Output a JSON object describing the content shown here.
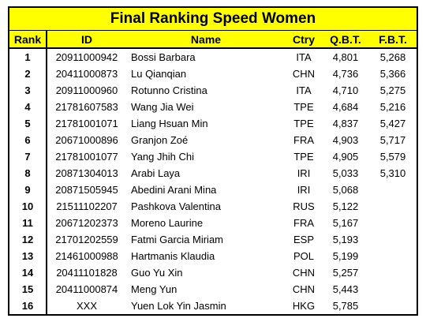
{
  "title": "Final Ranking Speed Women",
  "headers": {
    "rank": "Rank",
    "id": "ID",
    "name": "Name",
    "ctry": "Ctry",
    "qbt": "Q.B.T.",
    "fbt": "F.B.T."
  },
  "rows": [
    {
      "rank": "1",
      "id": "20911000942",
      "name": "Bossi Barbara",
      "ctry": "ITA",
      "qbt": "4,801",
      "fbt": "5,268"
    },
    {
      "rank": "2",
      "id": "20411000873",
      "name": "Lu Qianqian",
      "ctry": "CHN",
      "qbt": "4,736",
      "fbt": "5,366"
    },
    {
      "rank": "3",
      "id": "20911000960",
      "name": "Rotunno Cristina",
      "ctry": "ITA",
      "qbt": "4,710",
      "fbt": "5,275"
    },
    {
      "rank": "4",
      "id": "21781607583",
      "name": "Wang Jia Wei",
      "ctry": "TPE",
      "qbt": "4,684",
      "fbt": "5,216"
    },
    {
      "rank": "5",
      "id": "21781001071",
      "name": "Liang Hsuan Min",
      "ctry": "TPE",
      "qbt": "4,837",
      "fbt": "5,427"
    },
    {
      "rank": "6",
      "id": "20671000896",
      "name": "Granjon Zoé",
      "ctry": "FRA",
      "qbt": "4,903",
      "fbt": "5,717"
    },
    {
      "rank": "7",
      "id": "21781001077",
      "name": "Yang Jhih Chi",
      "ctry": "TPE",
      "qbt": "4,905",
      "fbt": "5,579"
    },
    {
      "rank": "8",
      "id": "20871304013",
      "name": "Arabi Laya",
      "ctry": "IRI",
      "qbt": "5,033",
      "fbt": "5,310"
    },
    {
      "rank": "9",
      "id": "20871505945",
      "name": "Abedini Arani Mina",
      "ctry": "IRI",
      "qbt": "5,068",
      "fbt": ""
    },
    {
      "rank": "10",
      "id": "21511102207",
      "name": "Pashkova Valentina",
      "ctry": "RUS",
      "qbt": "5,122",
      "fbt": ""
    },
    {
      "rank": "11",
      "id": "20671202373",
      "name": "Moreno Laurine",
      "ctry": "FRA",
      "qbt": "5,167",
      "fbt": ""
    },
    {
      "rank": "12",
      "id": "21701202559",
      "name": "Fatmi Garcia Miriam",
      "ctry": "ESP",
      "qbt": "5,193",
      "fbt": ""
    },
    {
      "rank": "13",
      "id": "21461000988",
      "name": "Hartmanis Klaudia",
      "ctry": "POL",
      "qbt": "5,199",
      "fbt": ""
    },
    {
      "rank": "14",
      "id": "20411101828",
      "name": "Guo Yu Xin",
      "ctry": "CHN",
      "qbt": "5,257",
      "fbt": ""
    },
    {
      "rank": "15",
      "id": "20411000874",
      "name": "Meng Yun",
      "ctry": "CHN",
      "qbt": "5,443",
      "fbt": ""
    },
    {
      "rank": "16",
      "id": "XXX",
      "name": "Yuen Lok Yin Jasmin",
      "ctry": "HKG",
      "qbt": "5,785",
      "fbt": ""
    }
  ]
}
